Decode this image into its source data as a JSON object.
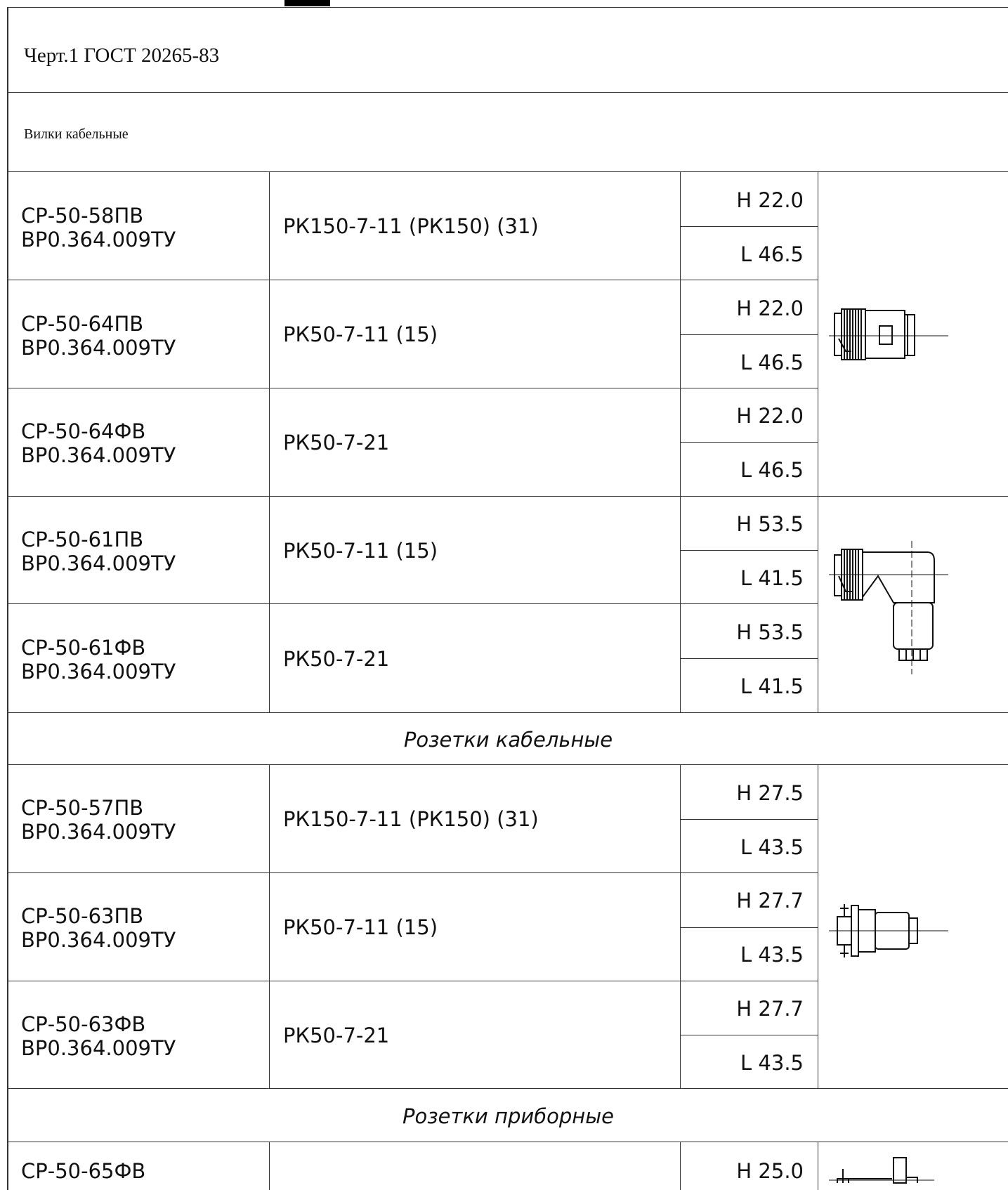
{
  "header": {
    "standard": "Черт.1 ГОСТ 20265-83",
    "category": "Вилки кабельные"
  },
  "sections": {
    "sockets_cable": "Розетки кабельные",
    "sockets_device": "Розетки приборные"
  },
  "rows": [
    {
      "model": "СР-50-58ПВ",
      "spec": "ВР0.364.009ТУ",
      "cable": "РК150-7-11 (РК150) (31)",
      "h": "Н 22.0",
      "l": "L 46.5"
    },
    {
      "model": "СР-50-64ПВ",
      "spec": "ВР0.364.009ТУ",
      "cable": "РК50-7-11 (15)",
      "h": "Н 22.0",
      "l": "L 46.5"
    },
    {
      "model": "СР-50-64ФВ",
      "spec": "ВР0.364.009ТУ",
      "cable": "РК50-7-21",
      "h": "Н 22.0",
      "l": "L 46.5"
    },
    {
      "model": "СР-50-61ПВ",
      "spec": "ВР0.364.009ТУ",
      "cable": "РК50-7-11 (15)",
      "h": "Н 53.5",
      "l": "L 41.5"
    },
    {
      "model": "СР-50-61ФВ",
      "spec": "ВР0.364.009ТУ",
      "cable": "РК50-7-21",
      "h": "Н 53.5",
      "l": "L 41.5"
    },
    {
      "model": "СР-50-57ПВ",
      "spec": "ВР0.364.009ТУ",
      "cable": "РК150-7-11 (РК150) (31)",
      "h": "Н 27.5",
      "l": "L 43.5"
    },
    {
      "model": "СР-50-63ПВ",
      "spec": "ВР0.364.009ТУ",
      "cable": "РК50-7-11 (15)",
      "h": "Н 27.7",
      "l": "L 43.5"
    },
    {
      "model": "СР-50-63ФВ",
      "spec": "ВР0.364.009ТУ",
      "cable": "РК50-7-21",
      "h": "Н 27.7",
      "l": "L 43.5"
    },
    {
      "model": "СР-50-65ФВ",
      "h": "Н 25.0"
    }
  ],
  "icons": [
    "straight-plug-drawing-icon",
    "angled-plug-drawing-icon",
    "cable-socket-drawing-icon",
    "panel-socket-drawing-icon"
  ]
}
